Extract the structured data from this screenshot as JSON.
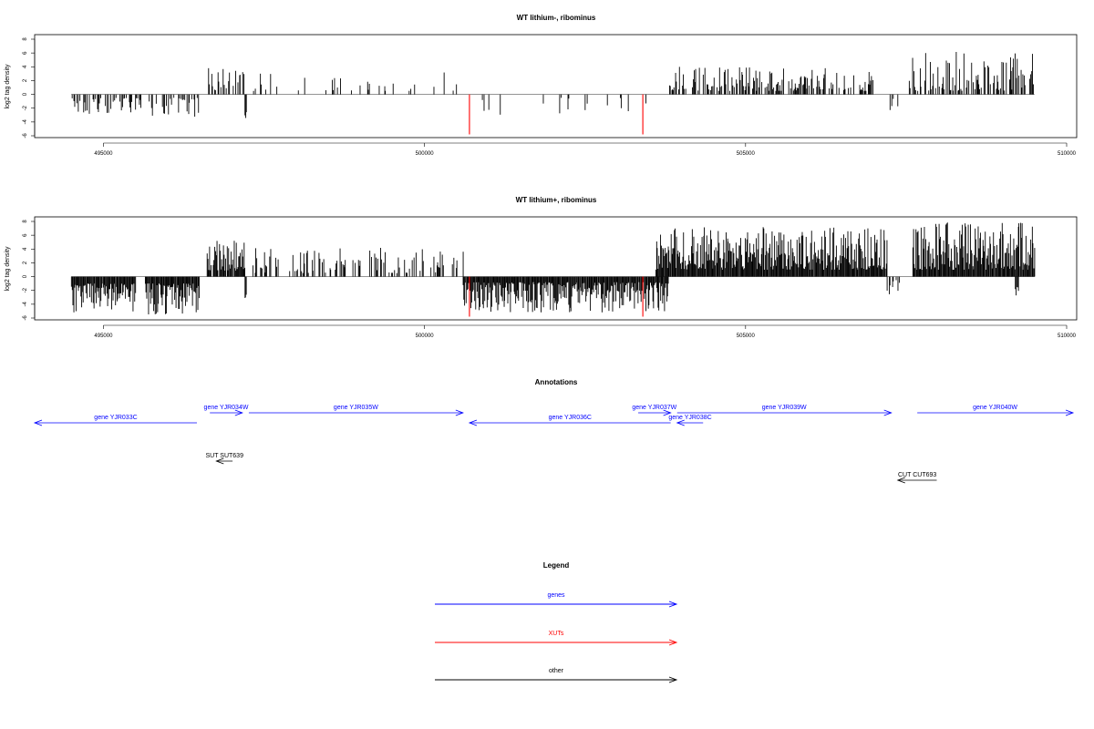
{
  "chart_data": [
    {
      "type": "bar",
      "title": "WT lithium-, ribominus",
      "ylabel": "log2 tag density",
      "xlim": [
        494000,
        510000
      ],
      "ylim": [
        -6,
        8
      ],
      "yticks": [
        -6,
        -4,
        -2,
        0,
        2,
        4,
        6,
        8
      ],
      "xticks": [
        495000,
        500000,
        505000,
        510000
      ],
      "highlight_color": "#ff0000",
      "highlight_positions": [
        500700,
        503400
      ],
      "highlight_value": -5.8,
      "segments": [
        {
          "start": 494500,
          "end": 495600,
          "sign": -1,
          "density": 0.45,
          "min": 0.5,
          "max": 3.3,
          "seed": 11
        },
        {
          "start": 495700,
          "end": 496500,
          "sign": -1,
          "density": 0.45,
          "min": 0.5,
          "max": 3.8,
          "seed": 12
        },
        {
          "start": 496600,
          "end": 497200,
          "sign": 1,
          "density": 0.5,
          "min": 0.5,
          "max": 4.5,
          "seed": 13
        },
        {
          "start": 497200,
          "end": 497230,
          "sign": -1,
          "density": 1,
          "min": 2.5,
          "max": 3.5,
          "seed": 14
        },
        {
          "start": 497300,
          "end": 500500,
          "sign": 1,
          "density": 0.09,
          "min": 0.5,
          "max": 3.2,
          "seed": 15
        },
        {
          "start": 500900,
          "end": 503500,
          "sign": -1,
          "density": 0.09,
          "min": 0.5,
          "max": 3.0,
          "seed": 16
        },
        {
          "start": 503800,
          "end": 507000,
          "sign": 1,
          "density": 0.5,
          "min": 0.5,
          "max": 4.0,
          "seed": 17
        },
        {
          "start": 507200,
          "end": 507400,
          "sign": -1,
          "density": 0.3,
          "min": 0.5,
          "max": 2.6,
          "seed": 18
        },
        {
          "start": 507500,
          "end": 509500,
          "sign": 1,
          "density": 0.5,
          "min": 0.5,
          "max": 6.2,
          "seed": 19
        }
      ]
    },
    {
      "type": "bar",
      "title": "WT lithium+, ribominus",
      "ylabel": "log2 tag density",
      "xlim": [
        494000,
        510000
      ],
      "ylim": [
        -6,
        8
      ],
      "yticks": [
        -6,
        -4,
        -2,
        0,
        2,
        4,
        6,
        8
      ],
      "xticks": [
        495000,
        500000,
        505000,
        510000
      ],
      "highlight_color": "#ff0000",
      "highlight_positions": [
        500700,
        503400
      ],
      "highlight_value": -5.8,
      "segments": [
        {
          "start": 494500,
          "end": 495500,
          "sign": -1,
          "density": 1,
          "min": 1.0,
          "max": 5.2,
          "seed": 21
        },
        {
          "start": 495650,
          "end": 496500,
          "sign": -1,
          "density": 1,
          "min": 1.0,
          "max": 5.5,
          "seed": 22
        },
        {
          "start": 496600,
          "end": 497200,
          "sign": 1,
          "density": 0.9,
          "min": 0.8,
          "max": 5.5,
          "seed": 23
        },
        {
          "start": 497200,
          "end": 497230,
          "sign": -1,
          "density": 1,
          "min": 2.5,
          "max": 3.7,
          "seed": 24
        },
        {
          "start": 497300,
          "end": 500600,
          "sign": 1,
          "density": 0.35,
          "min": 0.5,
          "max": 4.2,
          "seed": 25
        },
        {
          "start": 500600,
          "end": 503800,
          "sign": -1,
          "density": 1,
          "min": 0.8,
          "max": 5.2,
          "seed": 26
        },
        {
          "start": 503600,
          "end": 507200,
          "sign": 1,
          "density": 1,
          "min": 1.0,
          "max": 7.2,
          "seed": 27
        },
        {
          "start": 507200,
          "end": 507400,
          "sign": -1,
          "density": 0.3,
          "min": 0.5,
          "max": 2.6,
          "seed": 28
        },
        {
          "start": 507600,
          "end": 509500,
          "sign": 1,
          "density": 1,
          "min": 1.0,
          "max": 8.0,
          "seed": 29
        },
        {
          "start": 509200,
          "end": 509250,
          "sign": -1,
          "density": 1,
          "min": 1.5,
          "max": 2.8,
          "seed": 30
        }
      ]
    }
  ],
  "annotations": {
    "title": "Annotations",
    "xlim": [
      494000,
      510000
    ],
    "items": [
      {
        "label": "gene YJR033C",
        "start": 494000,
        "end": 496500,
        "strand": "-",
        "color": "#0000ff",
        "row": 1
      },
      {
        "label": "gene YJR034W",
        "start": 496700,
        "end": 497200,
        "strand": "+",
        "color": "#0000ff",
        "row": 0
      },
      {
        "label": "gene YJR035W",
        "start": 497300,
        "end": 500600,
        "strand": "+",
        "color": "#0000ff",
        "row": 0
      },
      {
        "label": "gene YJR036C",
        "start": 500700,
        "end": 503800,
        "strand": "-",
        "color": "#0000ff",
        "row": 1
      },
      {
        "label": "gene YJR037W",
        "start": 503300,
        "end": 503800,
        "strand": "+",
        "color": "#0000ff",
        "row": 0
      },
      {
        "label": "gene YJR038C",
        "start": 503900,
        "end": 504300,
        "strand": "-",
        "color": "#0000ff",
        "row": 1
      },
      {
        "label": "gene YJR039W",
        "start": 503900,
        "end": 507200,
        "strand": "+",
        "color": "#0000ff",
        "row": 0
      },
      {
        "label": "gene YJR040W",
        "start": 507600,
        "end": 510000,
        "strand": "+",
        "color": "#0000ff",
        "row": 0
      },
      {
        "label": "SUT SUT639",
        "start": 496800,
        "end": 497050,
        "strand": "-",
        "color": "#000000",
        "row": 2
      },
      {
        "label": "CUT CUT693",
        "start": 507300,
        "end": 507900,
        "strand": "-",
        "color": "#000000",
        "row": 3
      }
    ]
  },
  "legend": {
    "title": "Legend",
    "items": [
      {
        "label": "genes",
        "color": "#0000ff"
      },
      {
        "label": "XUTs",
        "color": "#ff0000"
      },
      {
        "label": "other",
        "color": "#000000"
      }
    ]
  }
}
